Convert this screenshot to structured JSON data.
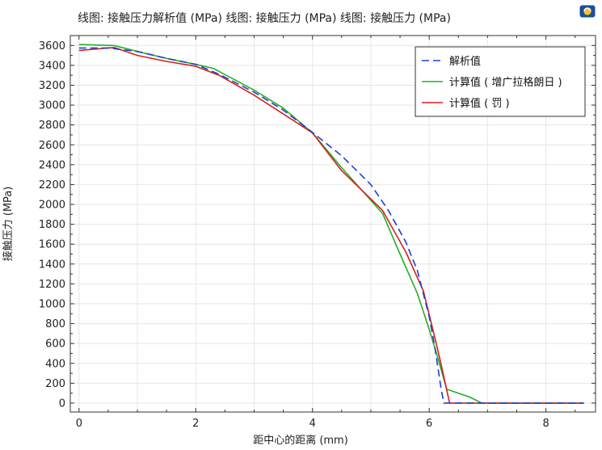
{
  "header": {
    "title": "线图: 接触压力解析值 (MPa)  线图: 接触压力 (MPa)  线图: 接触压力 (MPa)",
    "logo_icon": "comsol-logo-icon"
  },
  "chart_data": {
    "type": "line",
    "title": "线图: 接触压力解析值 (MPa)  线图: 接触压力 (MPa)  线图: 接触压力 (MPa)",
    "xlabel": "距中心的距离 (mm)",
    "ylabel": "接触压力 (MPa)",
    "xlim": [
      -0.15,
      8.85
    ],
    "ylim": [
      -90,
      3700
    ],
    "xticks": [
      0,
      2,
      4,
      6,
      8
    ],
    "yticks": [
      0,
      200,
      400,
      600,
      800,
      1000,
      1200,
      1400,
      1600,
      1800,
      2000,
      2200,
      2400,
      2600,
      2800,
      3000,
      3200,
      3400,
      3600
    ],
    "grid": true,
    "legend_position": "top-right",
    "series": [
      {
        "name": "解析值",
        "color": "#1f3fd6",
        "style": "dashed",
        "points": [
          [
            0,
            3575
          ],
          [
            0.5,
            3575
          ],
          [
            1.0,
            3540
          ],
          [
            1.5,
            3470
          ],
          [
            2.0,
            3410
          ],
          [
            2.4,
            3310
          ],
          [
            3.0,
            3130
          ],
          [
            3.5,
            2950
          ],
          [
            4.0,
            2725
          ],
          [
            4.5,
            2490
          ],
          [
            5.0,
            2200
          ],
          [
            5.3,
            1940
          ],
          [
            5.6,
            1620
          ],
          [
            5.8,
            1330
          ],
          [
            6.0,
            870
          ],
          [
            6.1,
            550
          ],
          [
            6.2,
            160
          ],
          [
            6.25,
            0
          ],
          [
            8.65,
            0
          ]
        ]
      },
      {
        "name": "计算值 ( 增广拉格朗日 )",
        "color": "#22b028",
        "style": "solid",
        "points": [
          [
            0,
            3610
          ],
          [
            0.6,
            3600
          ],
          [
            1.0,
            3540
          ],
          [
            1.5,
            3470
          ],
          [
            2.0,
            3410
          ],
          [
            2.3,
            3370
          ],
          [
            3.0,
            3150
          ],
          [
            3.5,
            2970
          ],
          [
            4.0,
            2720
          ],
          [
            4.5,
            2370
          ],
          [
            5.2,
            1910
          ],
          [
            5.5,
            1500
          ],
          [
            5.8,
            1100
          ],
          [
            6.0,
            740
          ],
          [
            6.15,
            450
          ],
          [
            6.3,
            140
          ],
          [
            6.7,
            60
          ],
          [
            6.9,
            0
          ],
          [
            8.65,
            0
          ]
        ]
      },
      {
        "name": "计算值 ( 罚 )",
        "color": "#d81e1e",
        "style": "solid",
        "points": [
          [
            0,
            3550
          ],
          [
            0.6,
            3580
          ],
          [
            1.0,
            3500
          ],
          [
            1.5,
            3440
          ],
          [
            2.0,
            3390
          ],
          [
            2.4,
            3300
          ],
          [
            3.0,
            3100
          ],
          [
            3.5,
            2910
          ],
          [
            4.0,
            2720
          ],
          [
            4.5,
            2340
          ],
          [
            5.2,
            1940
          ],
          [
            5.6,
            1520
          ],
          [
            5.9,
            1130
          ],
          [
            6.1,
            650
          ],
          [
            6.2,
            400
          ],
          [
            6.35,
            0
          ],
          [
            8.65,
            0
          ]
        ]
      }
    ]
  }
}
